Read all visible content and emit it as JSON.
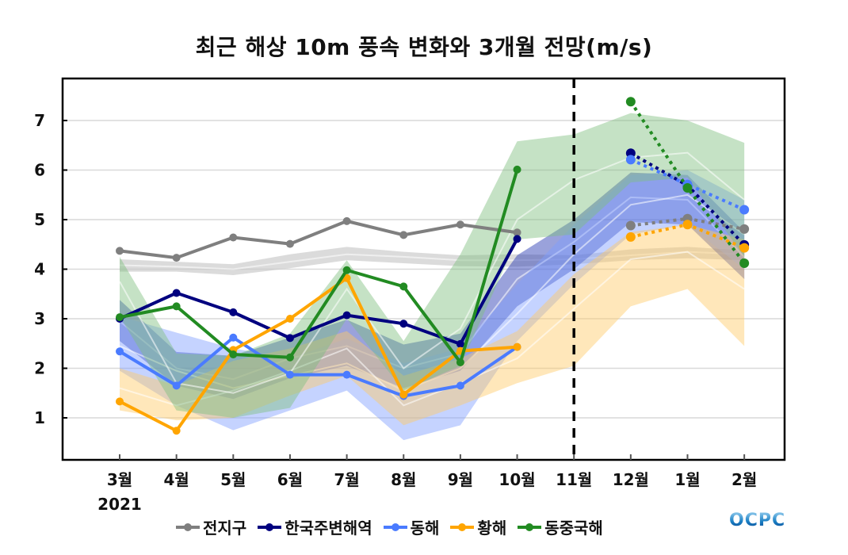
{
  "chart_data": {
    "type": "line",
    "title": "최근 해상 10m 풍속 변화와 3개월 전망(m/s)",
    "xlabel": "",
    "ylabel": "",
    "year_label": "2021",
    "categories": [
      "3월",
      "4월",
      "5월",
      "6월",
      "7월",
      "8월",
      "9월",
      "10월",
      "11월",
      "12월",
      "1월",
      "2월"
    ],
    "ylim": [
      0.15,
      7.7
    ],
    "yticks": [
      1,
      2,
      3,
      4,
      5,
      6,
      7
    ],
    "grid": true,
    "forecast_divider_at": "11월",
    "legend_position": "bottom",
    "series": [
      {
        "name": "전지구",
        "color": "#7f7f7f",
        "observed": [
          4.37,
          4.23,
          4.64,
          4.51,
          4.97,
          4.69,
          4.9,
          4.74,
          null,
          null,
          null,
          null
        ],
        "forecast": [
          null,
          null,
          null,
          null,
          null,
          null,
          null,
          null,
          null,
          4.88,
          5.02,
          4.81
        ],
        "band_color": "#c8c8c8",
        "band_mid": [
          4.08,
          4.05,
          4.0,
          4.15,
          4.3,
          4.25,
          4.18,
          4.18,
          4.2,
          4.28,
          4.35,
          4.3
        ],
        "band_upper": [
          4.2,
          4.15,
          4.1,
          4.3,
          4.45,
          4.35,
          4.28,
          4.3,
          4.28,
          4.4,
          4.45,
          4.38
        ],
        "band_lower": [
          3.95,
          3.95,
          3.88,
          4.02,
          4.18,
          4.12,
          4.06,
          4.05,
          4.1,
          4.18,
          4.22,
          4.18
        ]
      },
      {
        "name": "한국주변해역",
        "color": "#00007f",
        "observed": [
          3.0,
          3.52,
          3.13,
          2.61,
          3.07,
          2.9,
          2.49,
          4.61,
          null,
          null,
          null,
          null
        ],
        "forecast": [
          null,
          null,
          null,
          null,
          null,
          null,
          null,
          null,
          null,
          6.34,
          5.69,
          4.49
        ],
        "band_color": "#2030b0",
        "band_mid": [
          2.95,
          2.0,
          1.78,
          2.2,
          2.45,
          2.0,
          2.3,
          3.8,
          4.55,
          5.45,
          5.4,
          4.25
        ],
        "band_upper": [
          3.38,
          2.33,
          2.25,
          2.62,
          2.98,
          2.48,
          2.7,
          4.28,
          5.0,
          5.95,
          5.9,
          4.75
        ],
        "band_lower": [
          2.55,
          1.65,
          1.38,
          1.8,
          2.05,
          1.6,
          1.95,
          3.25,
          4.0,
          4.95,
          4.9,
          3.8
        ]
      },
      {
        "name": "동해",
        "color": "#4a7bff",
        "observed": [
          2.34,
          1.65,
          2.62,
          1.87,
          1.87,
          1.44,
          1.65,
          2.43,
          null,
          null,
          null,
          null
        ],
        "forecast": [
          null,
          null,
          null,
          null,
          null,
          null,
          null,
          null,
          null,
          6.21,
          5.71,
          5.2
        ],
        "band_color": "#7f9eff",
        "band_mid": [
          2.45,
          1.95,
          1.6,
          1.85,
          2.1,
          1.55,
          2.0,
          3.1,
          4.3,
          5.3,
          5.5,
          4.7
        ],
        "band_upper": [
          3.05,
          2.72,
          2.4,
          2.2,
          2.6,
          2.1,
          2.4,
          3.7,
          4.9,
          5.9,
          6.0,
          5.4
        ],
        "band_lower": [
          1.95,
          1.25,
          0.75,
          1.15,
          1.55,
          0.55,
          0.85,
          2.55,
          3.7,
          4.7,
          4.9,
          4.0
        ]
      },
      {
        "name": "황해",
        "color": "#ffa500",
        "observed": [
          1.33,
          0.74,
          2.37,
          3.0,
          3.82,
          1.47,
          2.35,
          2.43,
          null,
          null,
          null,
          null
        ],
        "forecast": [
          null,
          null,
          null,
          null,
          null,
          null,
          null,
          null,
          null,
          4.65,
          4.9,
          4.43
        ],
        "band_color": "#ffc966",
        "band_mid": [
          1.6,
          1.25,
          1.55,
          1.95,
          2.4,
          1.25,
          1.7,
          2.2,
          3.2,
          4.2,
          4.35,
          3.6
        ],
        "band_upper": [
          2.0,
          1.65,
          2.15,
          2.4,
          2.75,
          1.85,
          2.2,
          2.75,
          3.9,
          4.75,
          4.9,
          4.6
        ],
        "band_lower": [
          1.15,
          0.95,
          1.0,
          1.45,
          1.85,
          0.85,
          1.25,
          1.7,
          2.05,
          3.25,
          3.6,
          2.45
        ]
      },
      {
        "name": "동중국해",
        "color": "#228b22",
        "observed": [
          3.03,
          3.25,
          2.28,
          2.22,
          3.98,
          3.65,
          2.12,
          6.01,
          null,
          null,
          null,
          null
        ],
        "forecast": [
          null,
          null,
          null,
          null,
          null,
          null,
          null,
          null,
          null,
          7.38,
          5.64,
          4.12
        ],
        "band_color": "#7fbf7f",
        "band_mid": [
          3.75,
          1.7,
          1.5,
          1.9,
          3.6,
          2.0,
          2.8,
          5.0,
          5.8,
          6.25,
          6.35,
          5.4
        ],
        "band_upper": [
          4.25,
          2.3,
          2.25,
          2.7,
          4.18,
          2.55,
          4.3,
          6.58,
          6.72,
          7.15,
          7.0,
          6.55
        ],
        "band_lower": [
          3.05,
          1.15,
          1.0,
          1.2,
          3.0,
          1.55,
          2.05,
          4.6,
          4.7,
          5.75,
          5.85,
          4.25
        ]
      }
    ]
  },
  "legend": {
    "items": [
      "전지구",
      "한국주변해역",
      "동해",
      "황해",
      "동중국해"
    ]
  },
  "logo_text": "OCPC"
}
